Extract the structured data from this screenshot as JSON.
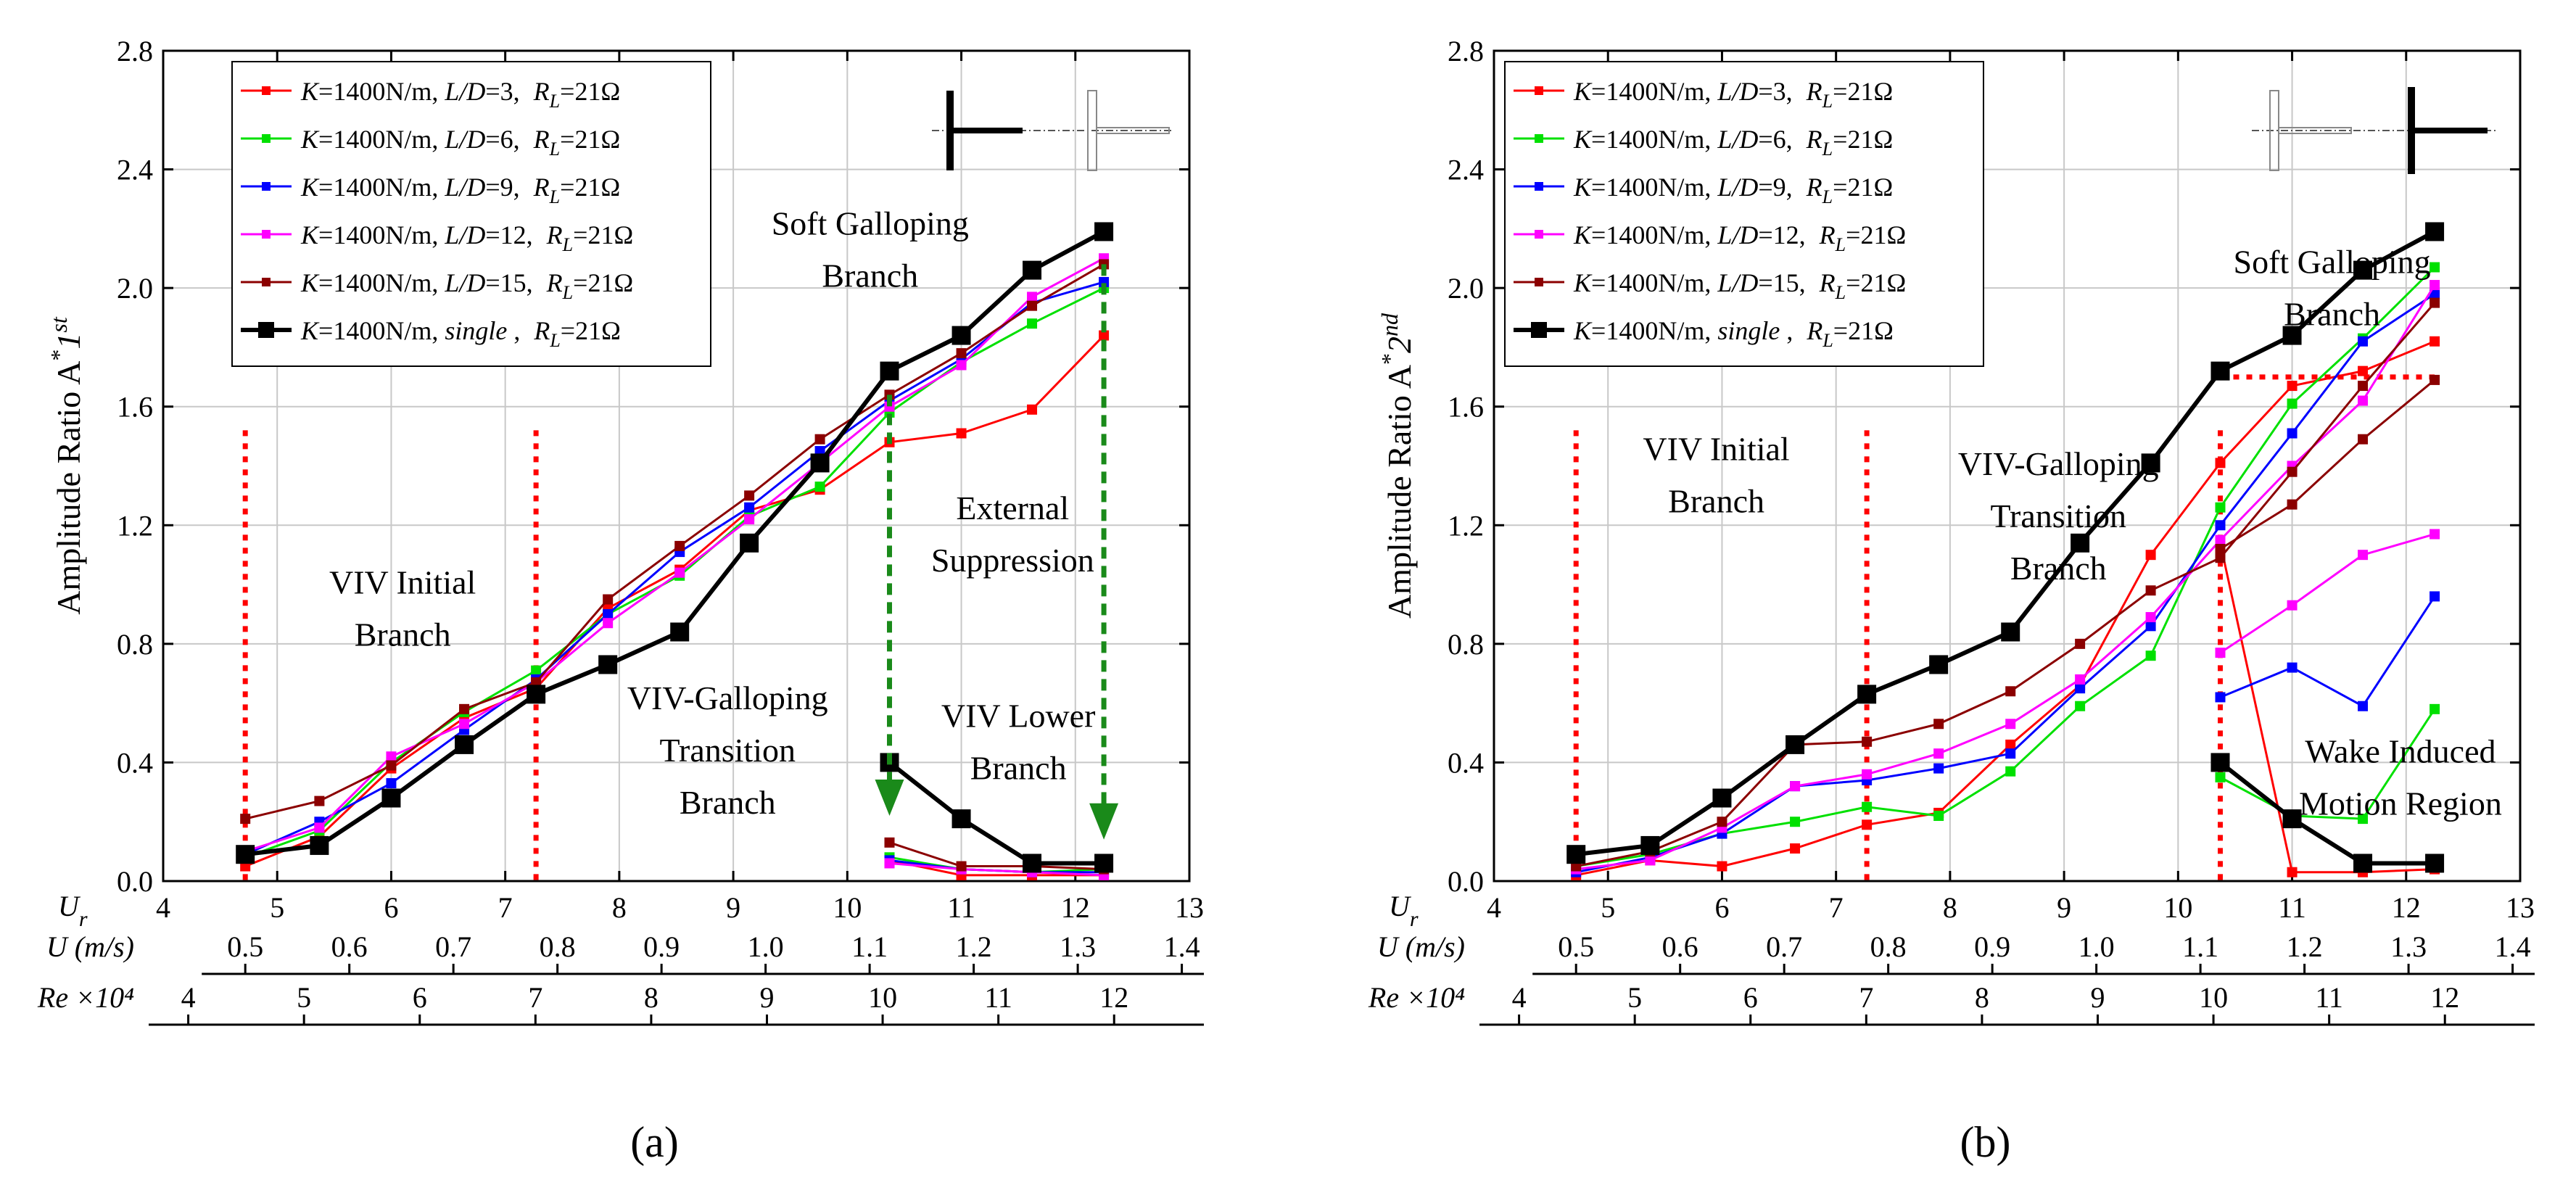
{
  "figure": {
    "panels": [
      "(a)",
      "(b)"
    ]
  },
  "chart_data": [
    {
      "type": "line",
      "panel_label": "(a)",
      "ylabel": {
        "main": "Amplitude Ratio  A",
        "sup": "*",
        "sub": "1",
        "sup2": "st"
      },
      "xlim": [
        4,
        13
      ],
      "ylim": [
        0,
        2.8
      ],
      "yticks": [
        "0.0",
        "0.4",
        "0.8",
        "1.2",
        "1.6",
        "2.0",
        "2.4",
        "2.8"
      ],
      "grid": true,
      "legend_position": "top-left",
      "axes": [
        {
          "label": "Ur",
          "label_main": "U",
          "label_sub": "r",
          "ticks": [
            "4",
            "5",
            "6",
            "7",
            "8",
            "9",
            "10",
            "11",
            "12",
            "13"
          ],
          "tick_values": [
            4,
            5,
            6,
            7,
            8,
            9,
            10,
            11,
            12,
            13
          ]
        },
        {
          "label": "U (m/s)",
          "ticks": [
            "0.5",
            "0.6",
            "0.7",
            "0.8",
            "0.9",
            "1.0",
            "1.1",
            "1.2",
            "1.3",
            "1.4"
          ],
          "tick_values": [
            0.5,
            0.6,
            0.7,
            0.8,
            0.9,
            1.0,
            1.1,
            1.2,
            1.3,
            1.4
          ]
        },
        {
          "label": "Re ×10⁴",
          "ticks": [
            "4",
            "5",
            "6",
            "7",
            "8",
            "9",
            "10",
            "11",
            "12"
          ],
          "tick_values": [
            4,
            5,
            6,
            7,
            8,
            9,
            10,
            11,
            12
          ]
        }
      ],
      "series": [
        {
          "name": "K=1400N/m, L/D=3,   RL=21Ω",
          "lk": "K",
          "lmid": "=1400N/m, ",
          "lld": "L/D",
          "lrest": "=3,   ",
          "color": "#ff0000",
          "x": [
            4.72,
            5.37,
            6.0,
            6.64,
            7.27,
            7.9,
            8.53,
            9.14,
            9.76,
            10.37,
            11.0,
            11.62,
            12.25
          ],
          "y": [
            0.05,
            0.15,
            0.38,
            0.55,
            0.65,
            0.92,
            1.05,
            1.25,
            1.32,
            1.48,
            1.51,
            1.59,
            1.84
          ],
          "x2": [
            10.37,
            11.0,
            11.62,
            12.25
          ],
          "y2": [
            0.07,
            0.02,
            0.02,
            0.02
          ]
        },
        {
          "name": "K=1400N/m, L/D=6,   RL=21Ω",
          "lk": "K",
          "lmid": "=1400N/m, ",
          "lld": "L/D",
          "lrest": "=6,   ",
          "color": "#00e000",
          "x": [
            4.72,
            5.37,
            6.0,
            6.64,
            7.27,
            7.9,
            8.53,
            9.14,
            9.76,
            10.37,
            11.0,
            11.62,
            12.25
          ],
          "y": [
            0.08,
            0.17,
            0.4,
            0.57,
            0.71,
            0.9,
            1.03,
            1.23,
            1.33,
            1.58,
            1.75,
            1.88,
            2.0
          ],
          "x2": [
            10.37,
            11.0,
            11.62,
            12.25
          ],
          "y2": [
            0.08,
            0.04,
            0.03,
            0.04
          ]
        },
        {
          "name": "K=1400N/m, L/D=9,   RL=21Ω",
          "lk": "K",
          "lmid": "=1400N/m, ",
          "lld": "L/D",
          "lrest": "=9,   ",
          "color": "#0000ff",
          "x": [
            4.72,
            5.37,
            6.0,
            6.64,
            7.27,
            7.9,
            8.53,
            9.14,
            9.76,
            10.37,
            11.0,
            11.62,
            12.25
          ],
          "y": [
            0.09,
            0.2,
            0.33,
            0.51,
            0.68,
            0.9,
            1.11,
            1.26,
            1.45,
            1.62,
            1.76,
            1.95,
            2.02
          ],
          "x2": [
            10.37,
            11.0,
            11.62,
            12.25
          ],
          "y2": [
            0.07,
            0.04,
            0.03,
            0.03
          ]
        },
        {
          "name": "K=1400N/m, L/D=12, RL=21Ω",
          "lk": "K",
          "lmid": "=1400N/m, ",
          "lld": "L/D",
          "lrest": "=12, ",
          "color": "#ff00ff",
          "x": [
            4.72,
            5.37,
            6.0,
            6.64,
            7.27,
            7.9,
            8.53,
            9.14,
            9.76,
            10.37,
            11.0,
            11.62,
            12.25
          ],
          "y": [
            0.1,
            0.18,
            0.42,
            0.53,
            0.67,
            0.87,
            1.04,
            1.22,
            1.41,
            1.6,
            1.74,
            1.97,
            2.1
          ],
          "x2": [
            10.37,
            11.0,
            11.62,
            12.25
          ],
          "y2": [
            0.06,
            0.04,
            0.03,
            0.02
          ]
        },
        {
          "name": "K=1400N/m, L/D=15, RL=21Ω",
          "lk": "K",
          "lmid": "=1400N/m, ",
          "lld": "L/D",
          "lrest": "=15, ",
          "color": "#8b0000",
          "x": [
            4.72,
            5.37,
            6.0,
            6.64,
            7.27,
            7.9,
            8.53,
            9.14,
            9.76,
            10.37,
            11.0,
            11.62,
            12.25
          ],
          "y": [
            0.21,
            0.27,
            0.39,
            0.58,
            0.67,
            0.95,
            1.13,
            1.3,
            1.49,
            1.64,
            1.78,
            1.94,
            2.08
          ],
          "x2": [
            10.37,
            11.0,
            11.62,
            12.25
          ],
          "y2": [
            0.13,
            0.05,
            0.05,
            0.04
          ]
        },
        {
          "name": "K=1400N/m, single , RL=21Ω",
          "lk": "K",
          "lmid": "=1400N/m, ",
          "lld": "single",
          "lrest": " , ",
          "color": "#000000",
          "bold": true,
          "x": [
            4.72,
            5.37,
            6.0,
            6.64,
            7.27,
            7.9,
            8.53,
            9.14,
            9.76,
            10.37,
            11.0,
            11.62,
            12.25
          ],
          "y": [
            0.09,
            0.12,
            0.28,
            0.46,
            0.63,
            0.73,
            0.84,
            1.14,
            1.41,
            1.72,
            1.84,
            2.06,
            2.19
          ],
          "x2": [
            10.37,
            11.0,
            11.62,
            12.25
          ],
          "y2": [
            0.4,
            0.21,
            0.06,
            0.06
          ]
        }
      ],
      "annotations": [
        {
          "text": [
            "Soft Galloping",
            "Branch"
          ],
          "x": 10.2,
          "y": 2.18
        },
        {
          "text": [
            "VIV Initial",
            "Branch"
          ],
          "x": 6.1,
          "y": 0.97
        },
        {
          "text": [
            "VIV-Galloping",
            "Transition",
            "Branch"
          ],
          "x": 8.95,
          "y": 0.58
        },
        {
          "text": [
            "External",
            "Suppression"
          ],
          "x": 11.45,
          "y": 1.22
        },
        {
          "text": [
            "VIV Lower",
            "Branch"
          ],
          "x": 11.5,
          "y": 0.52
        }
      ],
      "vlines": [
        4.72,
        7.27
      ],
      "arrows": [
        {
          "x": 10.37,
          "y_from": 1.64,
          "y_to": 0.22
        },
        {
          "x": 12.25,
          "y_from": 2.08,
          "y_to": 0.14
        }
      ],
      "diagram": "tandem-right"
    },
    {
      "type": "line",
      "panel_label": "(b)",
      "ylabel": {
        "main": "Amplitude Ratio  A",
        "sup": "*",
        "sub": "2",
        "sup2": "nd"
      },
      "xlim": [
        4,
        13
      ],
      "ylim": [
        0,
        2.8
      ],
      "yticks": [
        "0.0",
        "0.4",
        "0.8",
        "1.2",
        "1.6",
        "2.0",
        "2.4",
        "2.8"
      ],
      "grid": true,
      "legend_position": "top-left",
      "axes": [
        {
          "label": "Ur",
          "label_main": "U",
          "label_sub": "r",
          "ticks": [
            "4",
            "5",
            "6",
            "7",
            "8",
            "9",
            "10",
            "11",
            "12",
            "13"
          ],
          "tick_values": [
            4,
            5,
            6,
            7,
            8,
            9,
            10,
            11,
            12,
            13
          ]
        },
        {
          "label": "U (m/s)",
          "ticks": [
            "0.5",
            "0.6",
            "0.7",
            "0.8",
            "0.9",
            "1.0",
            "1.1",
            "1.2",
            "1.3",
            "1.4"
          ],
          "tick_values": [
            0.5,
            0.6,
            0.7,
            0.8,
            0.9,
            1.0,
            1.1,
            1.2,
            1.3,
            1.4
          ]
        },
        {
          "label": "Re ×10⁴",
          "ticks": [
            "4",
            "5",
            "6",
            "7",
            "8",
            "9",
            "10",
            "11",
            "12"
          ],
          "tick_values": [
            4,
            5,
            6,
            7,
            8,
            9,
            10,
            11,
            12
          ]
        }
      ],
      "series": [
        {
          "name": "K=1400N/m, L/D=3,   RL=21Ω",
          "lk": "K",
          "lmid": "=1400N/m, ",
          "lld": "L/D",
          "lrest": "=3,   ",
          "color": "#ff0000",
          "x": [
            4.72,
            5.37,
            6.0,
            6.64,
            7.27,
            7.9,
            8.53,
            9.14,
            9.76,
            10.37,
            11.0,
            11.62,
            12.25
          ],
          "y": [
            0.02,
            0.07,
            0.05,
            0.11,
            0.19,
            0.23,
            0.46,
            0.66,
            1.1,
            1.41,
            1.67,
            1.72,
            1.82
          ],
          "x2": [
            10.37,
            11.0,
            11.62,
            12.25
          ],
          "y2": [
            1.14,
            0.03,
            0.03,
            0.04
          ]
        },
        {
          "name": "K=1400N/m, L/D=6,   RL=21Ω",
          "lk": "K",
          "lmid": "=1400N/m, ",
          "lld": "L/D",
          "lrest": "=6,   ",
          "color": "#00e000",
          "x": [
            4.72,
            5.37,
            6.0,
            6.64,
            7.27,
            7.9,
            8.53,
            9.14,
            9.76,
            10.37,
            11.0,
            11.62,
            12.25
          ],
          "y": [
            0.05,
            0.09,
            0.16,
            0.2,
            0.25,
            0.22,
            0.37,
            0.59,
            0.76,
            1.26,
            1.61,
            1.83,
            2.07
          ],
          "x2": [
            10.37,
            11.0,
            11.62,
            12.25
          ],
          "y2": [
            0.35,
            0.22,
            0.21,
            0.58
          ]
        },
        {
          "name": "K=1400N/m, L/D=9,   RL=21Ω",
          "lk": "K",
          "lmid": "=1400N/m, ",
          "lld": "L/D",
          "lrest": "=9,   ",
          "color": "#0000ff",
          "x": [
            4.72,
            5.37,
            6.0,
            6.64,
            7.27,
            7.9,
            8.53,
            9.14,
            9.76,
            10.37,
            11.0,
            11.62,
            12.25
          ],
          "y": [
            0.03,
            0.08,
            0.16,
            0.32,
            0.34,
            0.38,
            0.43,
            0.65,
            0.86,
            1.2,
            1.51,
            1.82,
            1.98
          ],
          "x2": [
            10.37,
            11.0,
            11.62,
            12.25
          ],
          "y2": [
            0.62,
            0.72,
            0.59,
            0.96
          ]
        },
        {
          "name": "K=1400N/m, L/D=12, RL=21Ω",
          "lk": "K",
          "lmid": "=1400N/m, ",
          "lld": "L/D",
          "lrest": "=12, ",
          "color": "#ff00ff",
          "x": [
            4.72,
            5.37,
            6.0,
            6.64,
            7.27,
            7.9,
            8.53,
            9.14,
            9.76,
            10.37,
            11.0,
            11.62,
            12.25
          ],
          "y": [
            0.04,
            0.07,
            0.18,
            0.32,
            0.36,
            0.43,
            0.53,
            0.68,
            0.89,
            1.15,
            1.4,
            1.62,
            2.01
          ],
          "x2": [
            10.37,
            11.0,
            11.62,
            12.25
          ],
          "y2": [
            0.77,
            0.93,
            1.1,
            1.17
          ]
        },
        {
          "name": "K=1400N/m, L/D=15, RL=21Ω",
          "lk": "K",
          "lmid": "=1400N/m, ",
          "lld": "L/D",
          "lrest": "=15, ",
          "color": "#8b0000",
          "x": [
            4.72,
            5.37,
            6.0,
            6.64,
            7.27,
            7.9,
            8.53,
            9.14,
            9.76,
            10.37,
            11.0,
            11.62,
            12.25
          ],
          "y": [
            0.05,
            0.1,
            0.2,
            0.46,
            0.47,
            0.53,
            0.64,
            0.8,
            0.98,
            1.09,
            1.38,
            1.67,
            1.95
          ],
          "x2": [
            10.37,
            11.0,
            11.62,
            12.25
          ],
          "y2": [
            1.12,
            1.27,
            1.49,
            1.69
          ]
        },
        {
          "name": "K=1400N/m, single , RL=21Ω",
          "lk": "K",
          "lmid": "=1400N/m, ",
          "lld": "single",
          "lrest": " , ",
          "color": "#000000",
          "bold": true,
          "x": [
            4.72,
            5.37,
            6.0,
            6.64,
            7.27,
            7.9,
            8.53,
            9.14,
            9.76,
            10.37,
            11.0,
            11.62,
            12.25
          ],
          "y": [
            0.09,
            0.12,
            0.28,
            0.46,
            0.63,
            0.73,
            0.84,
            1.14,
            1.41,
            1.72,
            1.84,
            2.06,
            2.19
          ],
          "x2": [
            10.37,
            11.0,
            11.62,
            12.25
          ],
          "y2": [
            0.4,
            0.21,
            0.06,
            0.06
          ]
        }
      ],
      "annotations": [
        {
          "text": [
            "Soft Galloping",
            "Branch"
          ],
          "x": 11.35,
          "y": 2.05
        },
        {
          "text": [
            "VIV Initial",
            "Branch"
          ],
          "x": 5.95,
          "y": 1.42
        },
        {
          "text": [
            "VIV-Galloping",
            "Transition",
            "Branch"
          ],
          "x": 8.95,
          "y": 1.37
        },
        {
          "text": [
            "Wake Induced",
            "Motion Region"
          ],
          "x": 11.95,
          "y": 0.4
        }
      ],
      "vlines": [
        4.72,
        7.27,
        10.37
      ],
      "hline": {
        "x_from": 10.37,
        "x_to": 12.25,
        "y": 1.7
      },
      "diagram": "tandem-left"
    }
  ]
}
